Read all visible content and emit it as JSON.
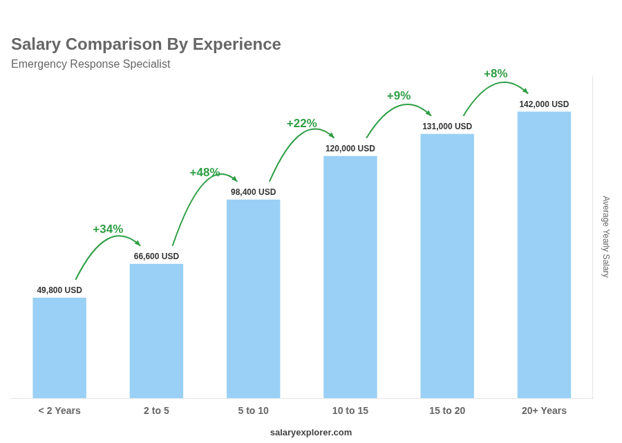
{
  "chart_data": {
    "type": "bar",
    "title": "Salary Comparison By Experience",
    "subtitle": "Emergency Response Specialist",
    "ylabel": "Average Yearly Salary",
    "footer": "salaryexplorer.com",
    "categories": [
      "< 2 Years",
      "2 to 5",
      "5 to 10",
      "10 to 15",
      "15 to 20",
      "20+ Years"
    ],
    "values": [
      49800,
      66600,
      98400,
      120000,
      131000,
      142000
    ],
    "value_labels": [
      "49,800 USD",
      "66,600 USD",
      "98,400 USD",
      "120,000 USD",
      "131,000 USD",
      "142,000 USD"
    ],
    "data_labels": true,
    "annotations": [
      "+34%",
      "+48%",
      "+22%",
      "+9%",
      "+8%"
    ],
    "ylim": [
      0,
      160000
    ],
    "tick_labels": "x",
    "grid": false
  }
}
